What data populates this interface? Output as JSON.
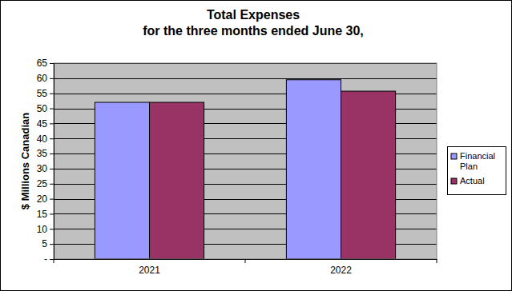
{
  "chart_data": {
    "type": "bar",
    "title": "Total Expenses",
    "subtitle": "for the three months ended June 30,",
    "y_label": "$ Millions Canadian",
    "categories": [
      "2021",
      "2022"
    ],
    "series": [
      {
        "name": "Financial Plan",
        "color": "#9999ff",
        "values": [
          52,
          59.5
        ]
      },
      {
        "name": "Actual",
        "color": "#993366",
        "values": [
          52,
          55.7
        ]
      }
    ],
    "ylim": [
      0,
      65
    ],
    "yticks": [
      {
        "value": 0,
        "label": "-"
      },
      5,
      10,
      15,
      20,
      25,
      30,
      35,
      40,
      45,
      50,
      55,
      60,
      65
    ],
    "grid": true,
    "legend": "right"
  }
}
